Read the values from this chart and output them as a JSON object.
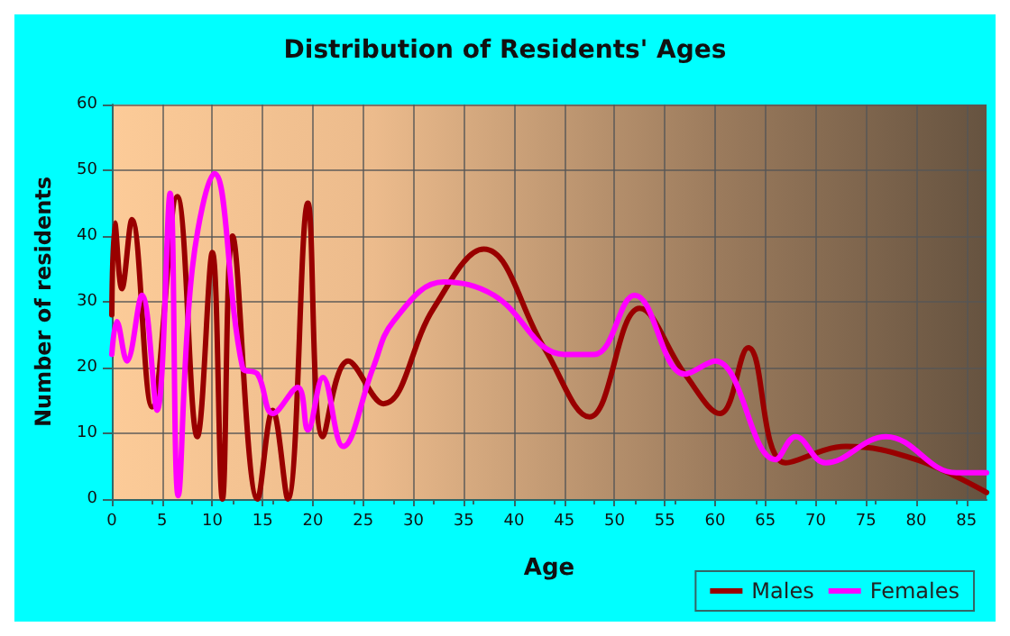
{
  "chart_data": {
    "type": "line",
    "title": "Distribution of Residents' Ages",
    "xlabel": "Age",
    "ylabel": "Number of residents",
    "xlim": [
      0,
      87
    ],
    "xticks": [
      0,
      5,
      10,
      15,
      20,
      25,
      30,
      35,
      40,
      45,
      50,
      55,
      60,
      65,
      70,
      75,
      80,
      85
    ],
    "ylim": [
      0,
      60
    ],
    "yticks": [
      0,
      10,
      20,
      30,
      40,
      50,
      60
    ],
    "grid": true,
    "legend": "bottom right",
    "marker": "none",
    "line_style": "solid",
    "series": [
      {
        "name": "Males",
        "color": "#990000",
        "x": [
          0,
          0.3,
          1,
          2,
          4,
          6.5,
          8.5,
          10,
          11,
          12,
          14.5,
          16,
          17.5,
          19.5,
          21,
          23.5,
          27,
          32,
          37,
          43,
          47.5,
          52.5,
          57,
          60.5,
          63.3,
          67,
          73,
          80,
          87
        ],
        "values": [
          28,
          42,
          32,
          42.5,
          14,
          46,
          9.5,
          37.5,
          0,
          40,
          0,
          13.5,
          0,
          45,
          9.5,
          21,
          14.5,
          29,
          38,
          23,
          12.5,
          29,
          19,
          13,
          23,
          5.5,
          8,
          6,
          1
        ]
      },
      {
        "name": "Females",
        "color": "#ff00ff",
        "x": [
          0,
          0.5,
          1.5,
          3,
          4.5,
          5.8,
          6.6,
          8,
          10.2,
          13,
          14.5,
          16,
          18.5,
          19.5,
          21,
          23,
          26,
          28,
          33,
          38,
          45,
          48,
          52,
          57,
          60,
          66,
          68,
          71,
          77,
          84,
          87
        ],
        "values": [
          22,
          27,
          21,
          31,
          13.5,
          46.5,
          0.5,
          35,
          49.5,
          20,
          19,
          13,
          17,
          10.5,
          18.5,
          8,
          20,
          27,
          33,
          31,
          22,
          22,
          31,
          19,
          21,
          6,
          9.5,
          5.5,
          9.5,
          4,
          4
        ]
      }
    ]
  }
}
